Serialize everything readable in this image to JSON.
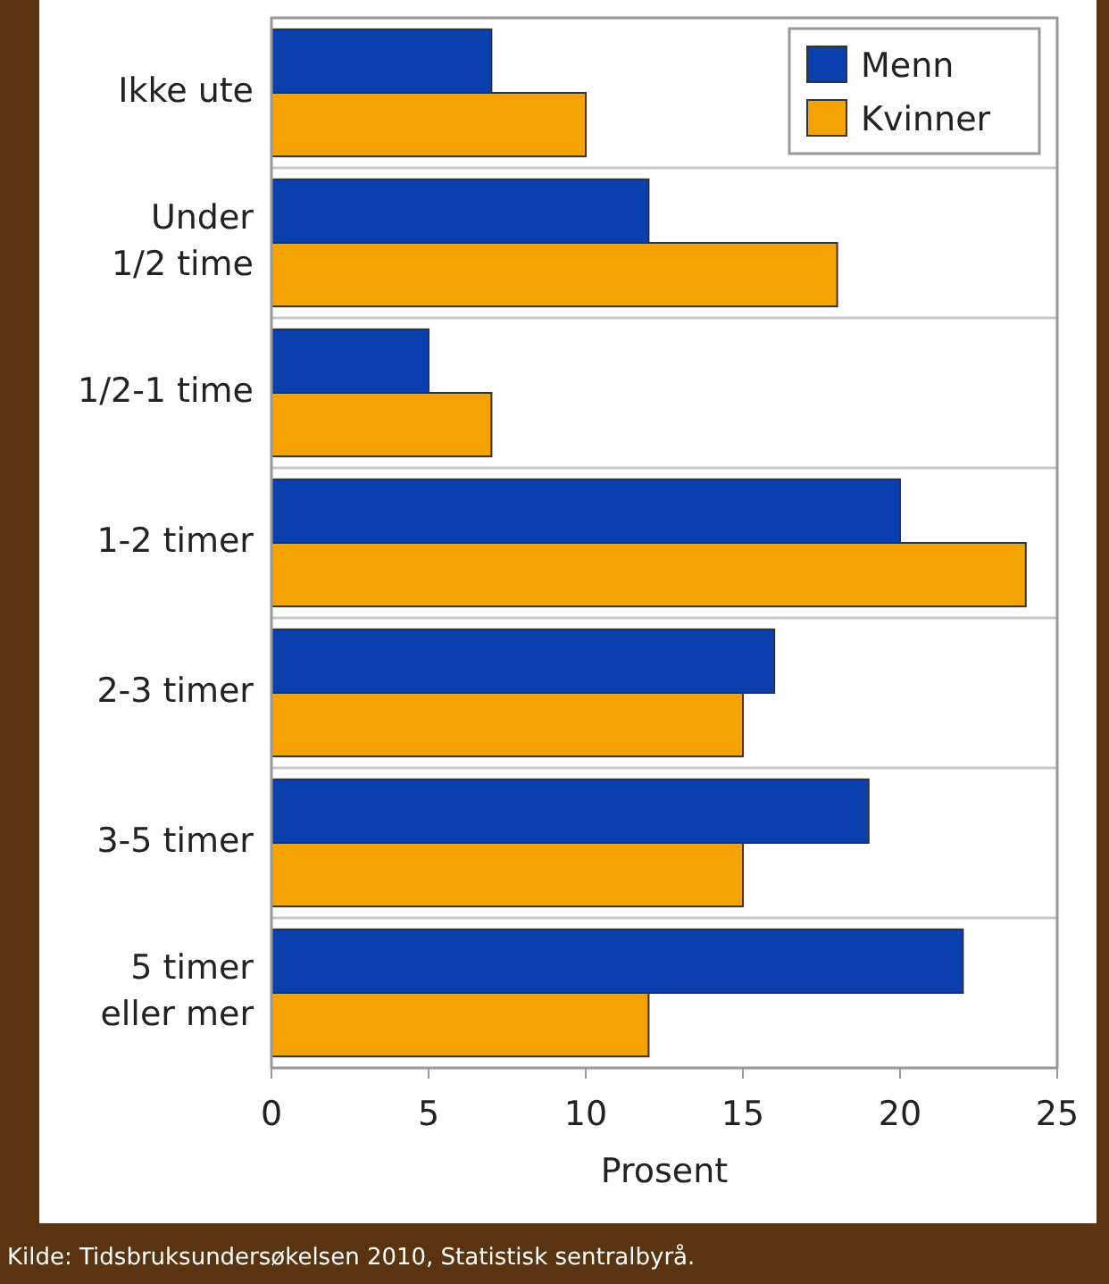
{
  "chart_data": {
    "type": "bar",
    "orientation": "horizontal",
    "xlabel": "Prosent",
    "categories": [
      "Ikke ute",
      "Under 1/2 time",
      "1/2-1 time",
      "1-2 timer",
      "2-3 timer",
      "3-5 timer",
      "5 timer eller mer"
    ],
    "series": [
      {
        "name": "Menn",
        "color": "#0b3fae",
        "values": [
          7,
          12,
          5,
          20,
          16,
          19,
          22
        ]
      },
      {
        "name": "Kvinner",
        "color": "#f5a300",
        "values": [
          10,
          18,
          7,
          24,
          15,
          15,
          12
        ]
      }
    ],
    "xlim": [
      0,
      25
    ],
    "xticks": [
      0,
      5,
      10,
      15,
      20,
      25
    ],
    "grid": "y",
    "legend": "top right",
    "annotations": [
      "Kilde: Tidsbruksundersøkelsen 2010, Statistisk sentralbyrå."
    ]
  }
}
